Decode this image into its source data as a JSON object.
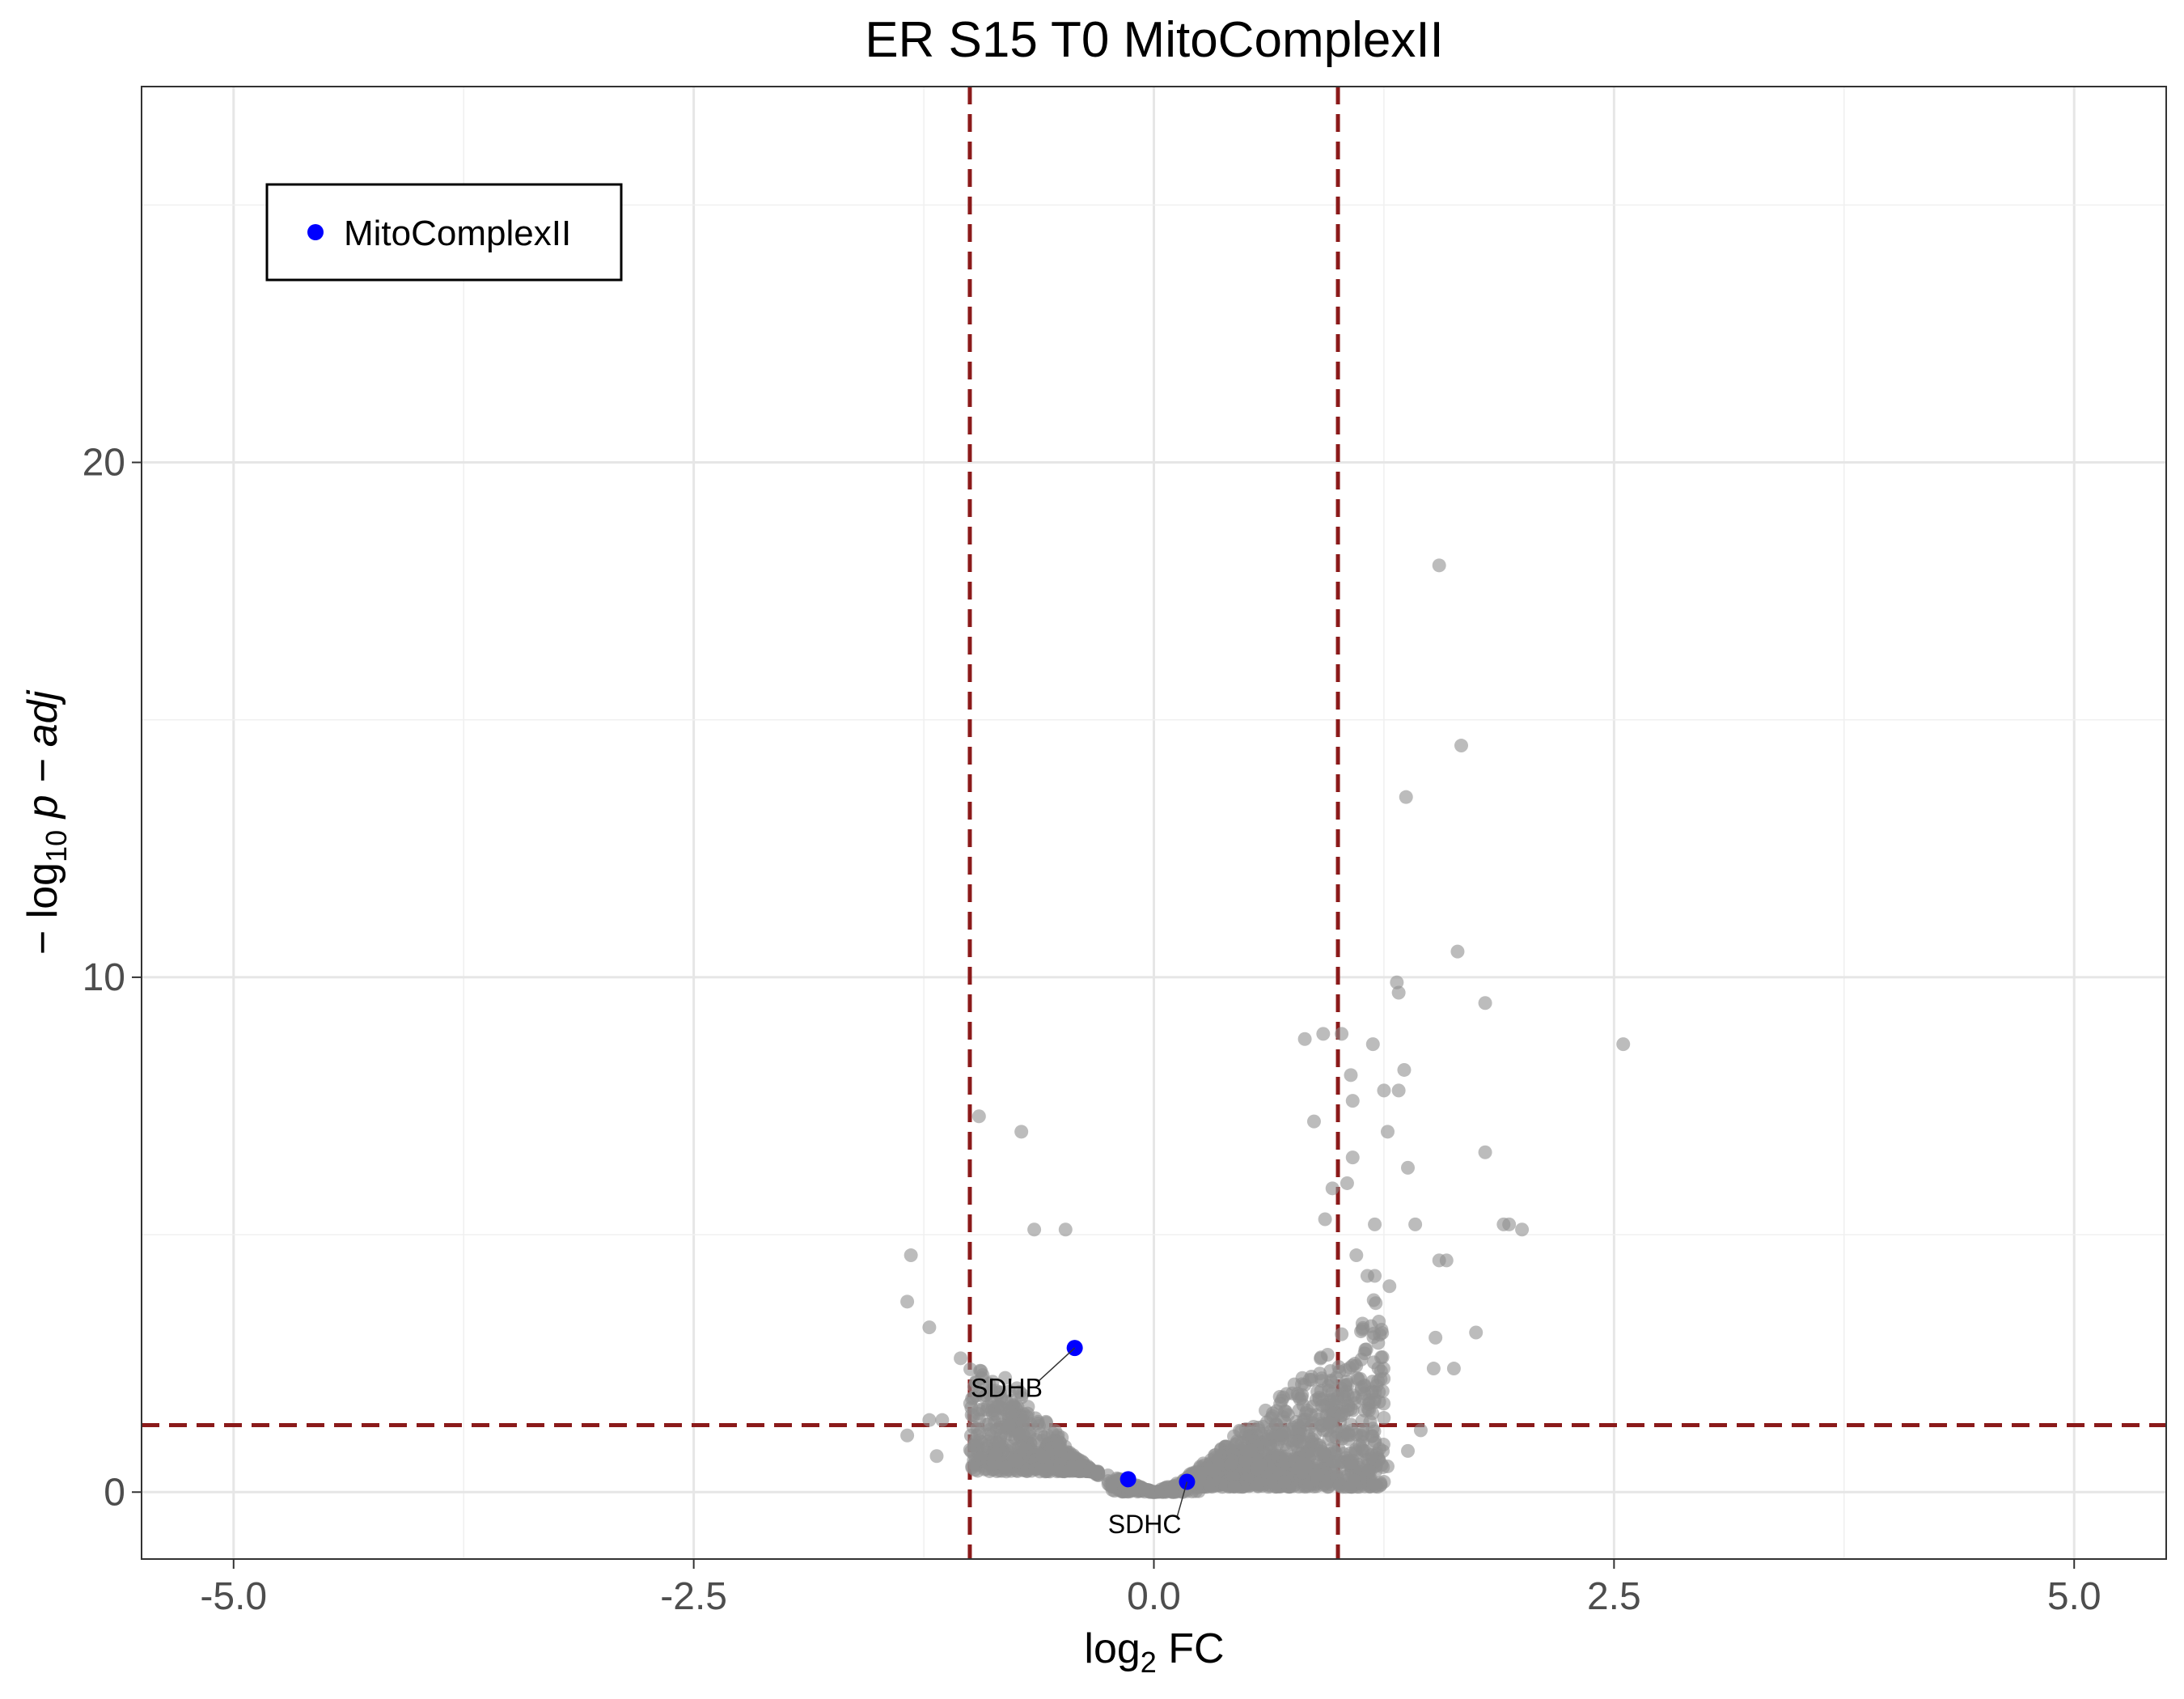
{
  "chart_data": {
    "type": "scatter",
    "title": "ER S15 T0 MitoComplexII",
    "xlabel": "log2 FC",
    "ylabel": "−log10 p − adj",
    "xlim": [
      -5.5,
      5.5
    ],
    "ylim": [
      -1.3,
      27.3
    ],
    "x_ticks": [
      -5.0,
      -2.5,
      0.0,
      2.5,
      5.0
    ],
    "x_tick_labels": [
      "-5.0",
      "-2.5",
      "0.0",
      "2.5",
      "5.0"
    ],
    "y_ticks": [
      0,
      10,
      20
    ],
    "y_tick_labels": [
      "0",
      "10",
      "20"
    ],
    "grid": true,
    "legend_position": "top-left",
    "thresholds": {
      "log2fc": [
        -1,
        1
      ],
      "neg_log10_padj": 1.3,
      "color": "#8b1a1a"
    },
    "colors": {
      "background": "#8f8f8f",
      "highlight": "#0000ff"
    },
    "series": [
      {
        "name": "",
        "color": "#8f8f8f",
        "points": [
          [
            1.55,
            18.0
          ],
          [
            1.67,
            14.5
          ],
          [
            1.37,
            13.5
          ],
          [
            1.65,
            10.5
          ],
          [
            1.32,
            9.9
          ],
          [
            1.33,
            9.7
          ],
          [
            1.8,
            9.5
          ],
          [
            2.55,
            8.7
          ],
          [
            0.82,
            8.8
          ],
          [
            0.92,
            8.9
          ],
          [
            1.02,
            8.9
          ],
          [
            1.19,
            8.7
          ],
          [
            1.07,
            8.1
          ],
          [
            1.36,
            8.2
          ],
          [
            1.25,
            7.8
          ],
          [
            1.33,
            7.8
          ],
          [
            1.08,
            7.6
          ],
          [
            0.87,
            7.2
          ],
          [
            1.27,
            7.0
          ],
          [
            -0.95,
            7.3
          ],
          [
            -0.72,
            7.0
          ],
          [
            1.8,
            6.6
          ],
          [
            1.08,
            6.5
          ],
          [
            1.38,
            6.3
          ],
          [
            1.05,
            6.0
          ],
          [
            0.97,
            5.9
          ],
          [
            1.2,
            5.2
          ],
          [
            1.42,
            5.2
          ],
          [
            1.9,
            5.2
          ],
          [
            1.93,
            5.2
          ],
          [
            2.0,
            5.1
          ],
          [
            -0.65,
            5.1
          ],
          [
            -0.48,
            5.1
          ],
          [
            0.93,
            5.3
          ],
          [
            1.55,
            4.5
          ],
          [
            1.59,
            4.5
          ],
          [
            -1.32,
            4.6
          ],
          [
            -1.34,
            3.7
          ],
          [
            1.28,
            4.0
          ],
          [
            1.1,
            4.6
          ],
          [
            1.16,
            4.2
          ],
          [
            1.2,
            4.2
          ],
          [
            1.53,
            3.0
          ],
          [
            1.75,
            3.1
          ],
          [
            1.52,
            2.4
          ],
          [
            1.63,
            2.4
          ],
          [
            -1.22,
            3.2
          ],
          [
            -1.05,
            2.6
          ],
          [
            -1.15,
            1.4
          ],
          [
            -1.22,
            1.4
          ],
          [
            -1.34,
            1.1
          ],
          [
            -1.18,
            0.7
          ],
          [
            -0.95,
            1.6
          ],
          [
            1.25,
            0.2
          ],
          [
            1.27,
            0.5
          ],
          [
            1.38,
            0.8
          ],
          [
            1.45,
            1.2
          ]
        ],
        "clusters": [
          {
            "x_range": [
              -1.0,
              -0.3
            ],
            "y_range": [
              0.4,
              3.2
            ],
            "count": 520,
            "shape": "left-arm"
          },
          {
            "x_range": [
              0.15,
              1.25
            ],
            "y_range": [
              0.1,
              4.4
            ],
            "count": 1040,
            "shape": "right-arm"
          },
          {
            "x_range": [
              -0.25,
              0.25
            ],
            "y_range": [
              0.0,
              0.35
            ],
            "count": 190,
            "shape": "centre"
          }
        ]
      },
      {
        "name": "MitoComplexII",
        "color": "#0000ff",
        "points": [
          [
            -0.43,
            2.8
          ],
          [
            -0.14,
            0.25
          ],
          [
            0.18,
            0.2
          ]
        ]
      }
    ],
    "annotations": [
      {
        "text": "SDHB",
        "x": -0.43,
        "y": 2.8,
        "label_x": -0.8,
        "label_y": 1.85
      },
      {
        "text": "SDHC",
        "x": 0.18,
        "y": 0.2,
        "label_x": -0.05,
        "label_y": -0.8
      }
    ]
  }
}
